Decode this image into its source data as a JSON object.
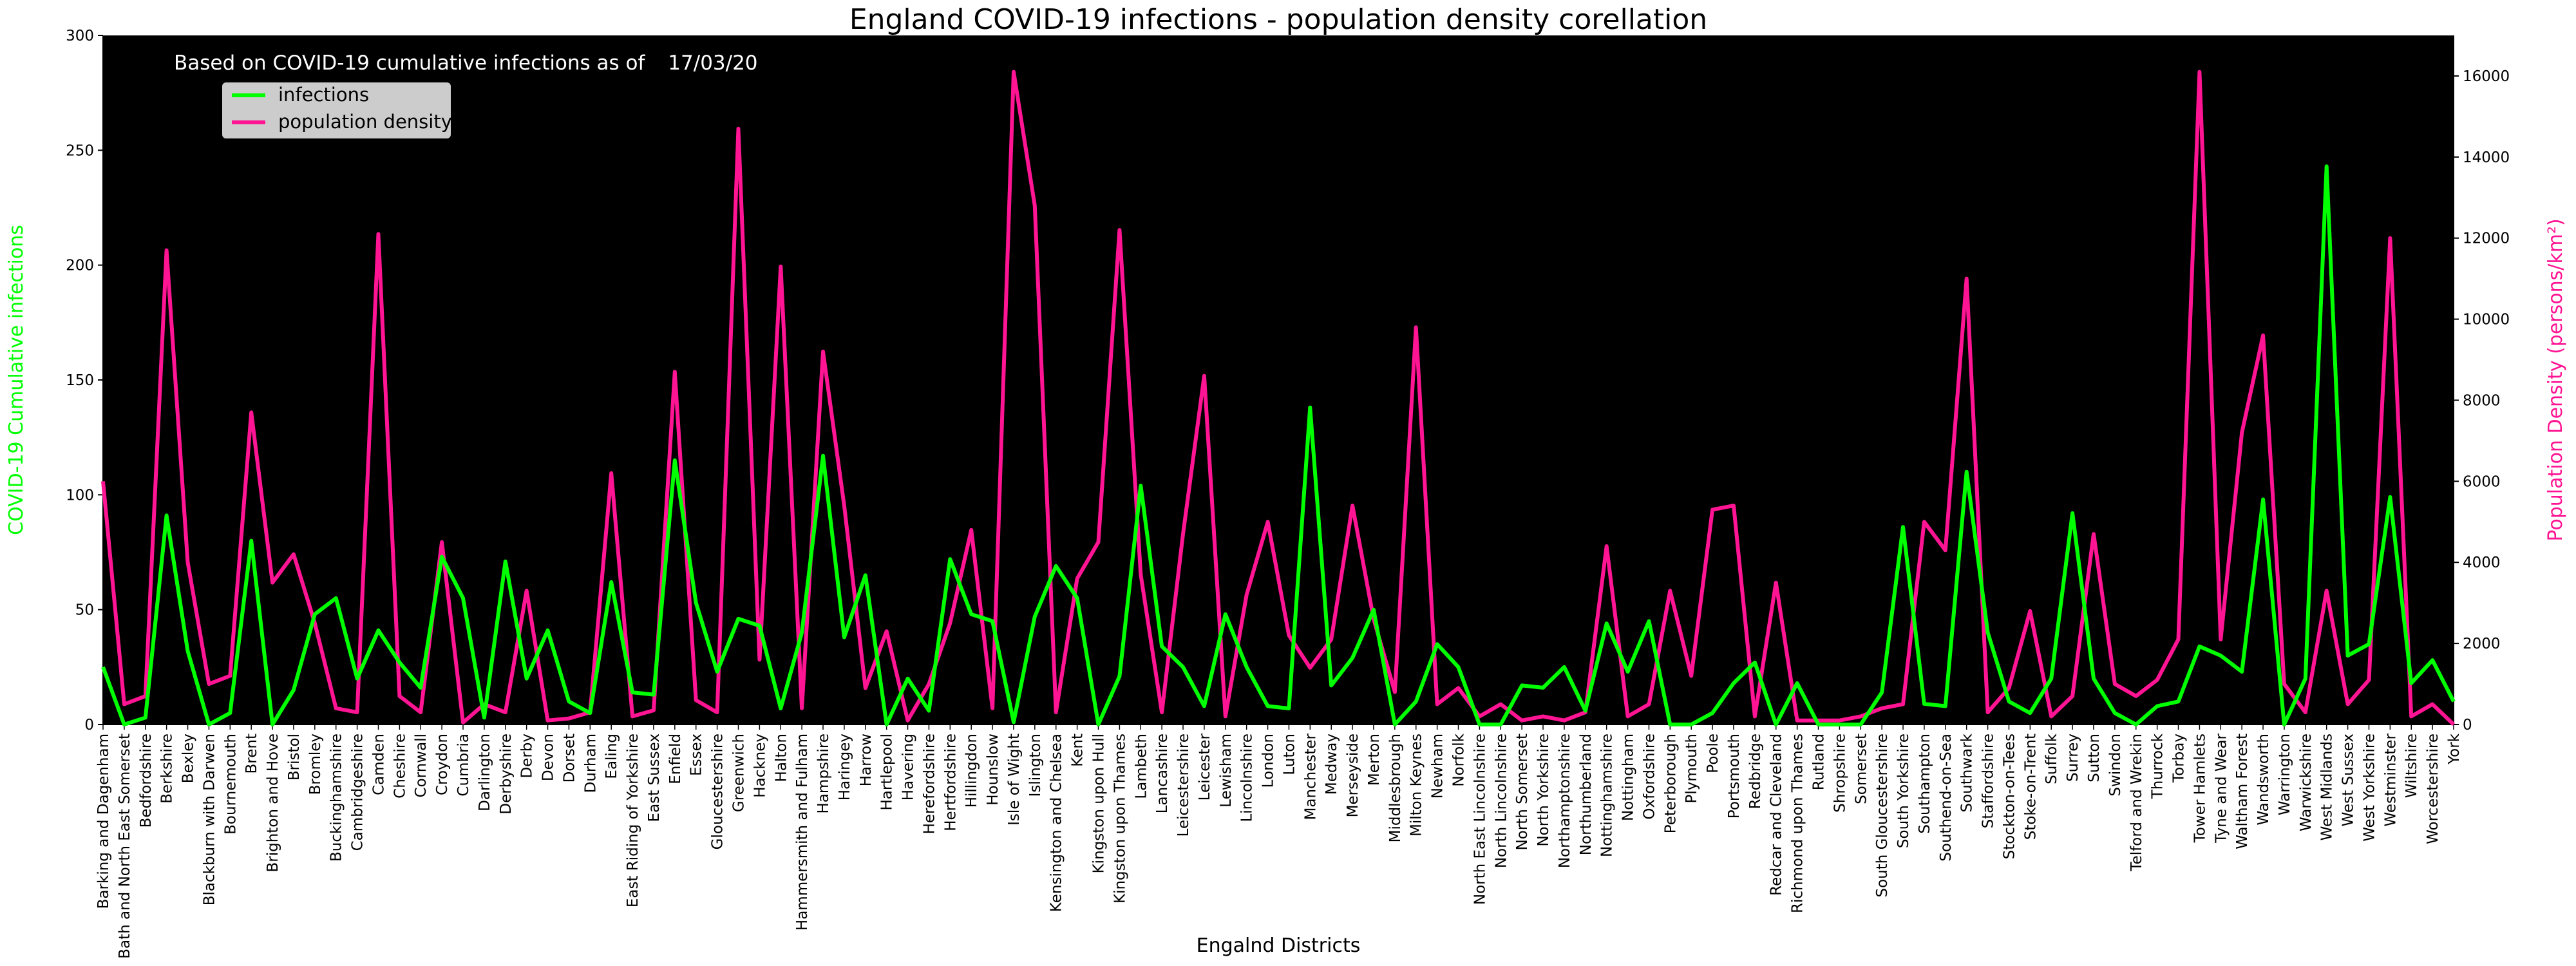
{
  "chart_data": {
    "type": "line",
    "title": "England COVID-19 infections - population density corellation",
    "annotation": {
      "prefix": "Based on COVID-19 cumulative infections as of",
      "date": "17/03/20"
    },
    "xlabel": "Engalnd Districts",
    "ylabel_left": "COVID-19 Cumulative infections",
    "ylabel_right": "Population Density (persons/km²)",
    "ylim_left": [
      0,
      300
    ],
    "ylim_right": [
      0,
      17000
    ],
    "yticks_left": [
      0,
      50,
      100,
      150,
      200,
      250,
      300
    ],
    "yticks_right": [
      0,
      2000,
      4000,
      6000,
      8000,
      10000,
      12000,
      14000,
      16000
    ],
    "legend_position": "top-left",
    "background": "#000000",
    "grid": false,
    "categories": [
      "Barking and Dagenham",
      "Bath and North East Somerset",
      "Bedfordshire",
      "Berkshire",
      "Bexley",
      "Blackburn with Darwen",
      "Bournemouth",
      "Brent",
      "Brighton and Hove",
      "Bristol",
      "Bromley",
      "Buckinghamshire",
      "Cambridgeshire",
      "Camden",
      "Cheshire",
      "Cornwall",
      "Croydon",
      "Cumbria",
      "Darlington",
      "Derbyshire",
      "Derby",
      "Devon",
      "Dorset",
      "Durham",
      "Ealing",
      "East Riding of Yorkshire",
      "East Sussex",
      "Enfield",
      "Essex",
      "Gloucestershire",
      "Greenwich",
      "Hackney",
      "Halton",
      "Hammersmith and Fulham",
      "Hampshire",
      "Haringey",
      "Harrow",
      "Hartlepool",
      "Havering",
      "Herefordshire",
      "Hertfordshire",
      "Hillingdon",
      "Hounslow",
      "Isle of Wight",
      "Islington",
      "Kensington and Chelsea",
      "Kent",
      "Kingston upon Hull",
      "Kingston upon Thames",
      "Lambeth",
      "Lancashire",
      "Leicestershire",
      "Leicester",
      "Lewisham",
      "Lincolnshire",
      "London",
      "Luton",
      "Manchester",
      "Medway",
      "Merseyside",
      "Merton",
      "Middlesbrough",
      "Milton Keynes",
      "Newham",
      "Norfolk",
      "North East Lincolnshire",
      "North Lincolnshire",
      "North Somerset",
      "North Yorkshire",
      "Northamptonshire",
      "Northumberland",
      "Nottinghamshire",
      "Nottingham",
      "Oxfordshire",
      "Peterborough",
      "Plymouth",
      "Poole",
      "Portsmouth",
      "Redbridge",
      "Redcar and Cleveland",
      "Richmond upon Thames",
      "Rutland",
      "Shropshire",
      "Somerset",
      "South Gloucestershire",
      "South Yorkshire",
      "Southampton",
      "Southend-on-Sea",
      "Southwark",
      "Staffordshire",
      "Stockton-on-Tees",
      "Stoke-on-Trent",
      "Suffolk",
      "Surrey",
      "Sutton",
      "Swindon",
      "Telford and Wrekin",
      "Thurrock",
      "Torbay",
      "Tower Hamlets",
      "Tyne and Wear",
      "Waltham Forest",
      "Wandsworth",
      "Warrington",
      "Warwickshire",
      "West Midlands",
      "West Sussex",
      "West Yorkshire",
      "Westminster",
      "Wiltshire",
      "Worcestershire",
      "York"
    ],
    "series": [
      {
        "name": "infections",
        "axis": "left",
        "color": "#00ff00",
        "values": [
          25,
          0,
          3,
          91,
          32,
          0,
          5,
          80,
          0,
          15,
          48,
          55,
          20,
          41,
          27,
          16,
          73,
          55,
          3,
          71,
          20,
          41,
          10,
          5,
          62,
          14,
          13,
          115,
          53,
          23,
          46,
          43,
          7,
          40,
          117,
          38,
          65,
          0,
          20,
          6,
          72,
          48,
          45,
          1,
          47,
          69,
          55,
          0,
          21,
          104,
          34,
          25,
          8,
          48,
          25,
          8,
          7,
          138,
          17,
          29,
          50,
          0,
          10,
          35,
          25,
          0,
          0,
          17,
          16,
          25,
          6,
          44,
          23,
          45,
          0,
          0,
          5,
          18,
          27,
          0,
          18,
          0,
          0,
          0,
          14,
          86,
          9,
          8,
          110,
          40,
          10,
          5,
          20,
          92,
          20,
          5,
          0,
          8,
          10,
          34,
          30,
          23,
          98,
          0,
          20,
          243,
          30,
          35,
          99,
          18,
          28,
          10
        ]
      },
      {
        "name": "population density",
        "axis": "right",
        "color": "#ff1493",
        "values": [
          6000,
          500,
          700,
          11700,
          4000,
          1000,
          1200,
          7700,
          3500,
          4200,
          2500,
          400,
          300,
          12100,
          700,
          300,
          4500,
          50,
          500,
          300,
          3300,
          100,
          150,
          300,
          6200,
          200,
          350,
          8700,
          600,
          300,
          14700,
          1600,
          11300,
          400,
          9200,
          5400,
          900,
          2300,
          100,
          1000,
          2500,
          4800,
          400,
          16100,
          12800,
          300,
          3600,
          4500,
          12200,
          3700,
          300,
          4700,
          8600,
          200,
          3200,
          5000,
          2200,
          1400,
          2100,
          5400,
          2600,
          800,
          9800,
          500,
          900,
          200,
          500,
          100,
          200,
          100,
          300,
          4400,
          200,
          500,
          3300,
          1200,
          5300,
          5400,
          200,
          3500,
          100,
          100,
          100,
          200,
          400,
          500,
          5000,
          4300,
          11000,
          300,
          900,
          2800,
          200,
          700,
          4700,
          1000,
          700,
          1100,
          2100,
          16100,
          2100,
          7200,
          9600,
          1000,
          300,
          3300,
          500,
          1100,
          12000,
          200,
          500,
          0
        ]
      }
    ]
  }
}
